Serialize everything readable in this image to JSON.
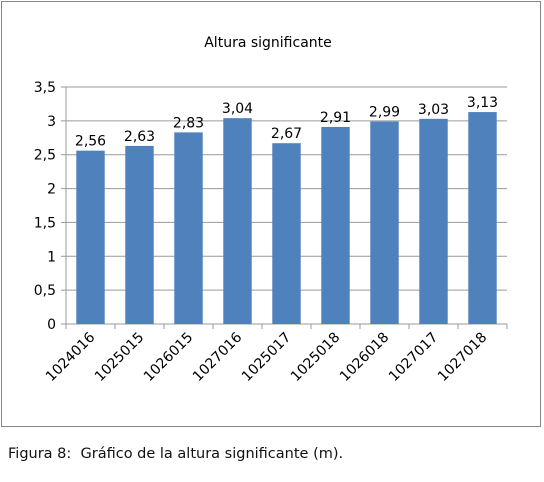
{
  "caption": {
    "label": "Figura 8",
    "separator": ":",
    "text": "Gráfico de la altura significante (m)."
  },
  "colors": {
    "bar": "#4F81BD",
    "gridline": "#9A9A9A",
    "border": "#868686",
    "text": "#000000"
  },
  "chart_data": {
    "type": "bar",
    "title": "Altura significante",
    "xlabel": "",
    "ylabel": "",
    "categories": [
      "1024016",
      "1025015",
      "1026015",
      "1027016",
      "1025017",
      "1025018",
      "1026018",
      "1027017",
      "1027018"
    ],
    "values": [
      2.56,
      2.63,
      2.83,
      3.04,
      2.67,
      2.91,
      2.99,
      3.03,
      3.13
    ],
    "value_labels": [
      "2,56",
      "2,63",
      "2,83",
      "3,04",
      "2,67",
      "2,91",
      "2,99",
      "3,03",
      "3,13"
    ],
    "ylim": [
      0,
      3.5
    ],
    "yticks": [
      0,
      0.5,
      1,
      1.5,
      2,
      2.5,
      3,
      3.5
    ],
    "ytick_labels": [
      "0",
      "0,5",
      "1",
      "1,5",
      "2",
      "2,5",
      "3",
      "3,5"
    ],
    "grid": true,
    "legend": "none"
  }
}
